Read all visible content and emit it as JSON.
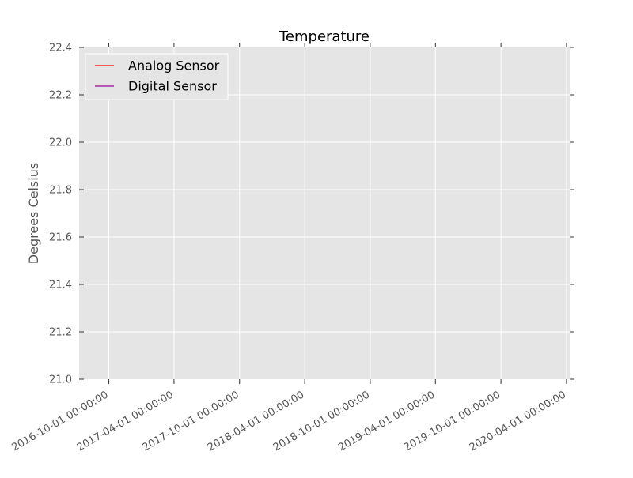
{
  "chart_data": {
    "type": "line",
    "title": "Temperature",
    "xlabel": "",
    "ylabel": "Degrees Celsius",
    "x_type": "date",
    "xlim": [
      "2016-07-10",
      "2020-04-10"
    ],
    "ylim": [
      21.0,
      22.4
    ],
    "x_ticks": [
      "2016-10-01 00:00:00",
      "2017-04-01 00:00:00",
      "2017-10-01 00:00:00",
      "2018-04-01 00:00:00",
      "2018-10-01 00:00:00",
      "2019-04-01 00:00:00",
      "2019-10-01 00:00:00",
      "2020-04-01 00:00:00"
    ],
    "y_ticks": [
      "21.0",
      "21.2",
      "21.4",
      "21.6",
      "21.8",
      "22.0",
      "22.2",
      "22.4"
    ],
    "grid": true,
    "legend_position": "top-left",
    "series": [
      {
        "name": "Analog Sensor",
        "color": "#ff0000",
        "values": []
      },
      {
        "name": "Digital Sensor",
        "color": "#990099",
        "values": []
      }
    ],
    "plot_background": "#e5e5e5",
    "grid_color": "#ffffff"
  }
}
